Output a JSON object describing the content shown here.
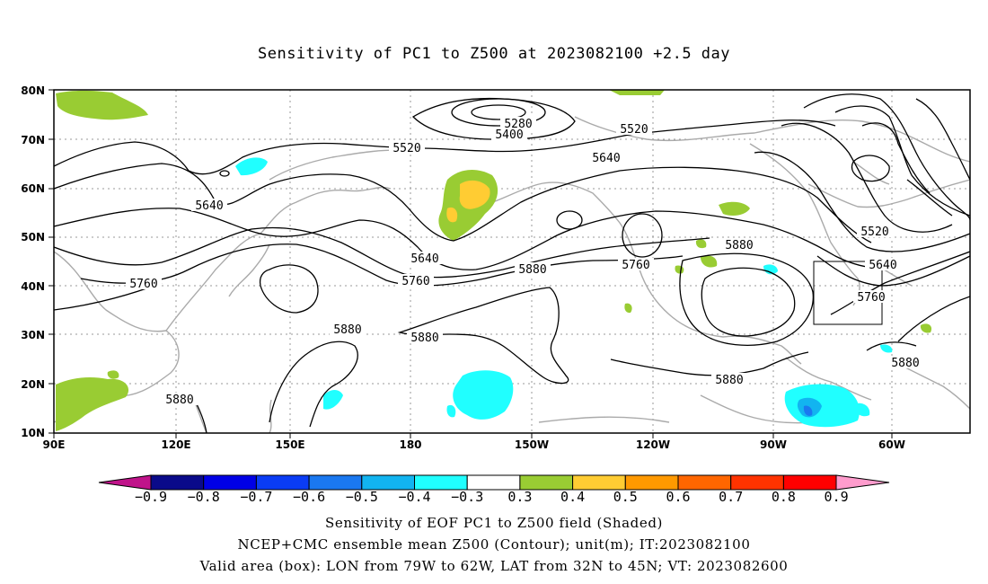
{
  "title": "Sensitivity of PC1 to Z500 at 2023082100 +2.5 day",
  "axes": {
    "lat_labels": [
      "80N",
      "70N",
      "60N",
      "50N",
      "40N",
      "30N",
      "20N",
      "10N"
    ],
    "lon_labels": [
      "90E",
      "120E",
      "150E",
      "180",
      "150W",
      "120W",
      "90W",
      "60W"
    ]
  },
  "contour_labels": {
    "c5280": "5280",
    "c5400": "5400",
    "c5520a": "5520",
    "c5520b": "5520",
    "c5520c": "5520",
    "c5640a": "5640",
    "c5640b": "5640",
    "c5640c": "5640",
    "c5640d": "5640",
    "c5760a": "5760",
    "c5760b": "5760",
    "c5760c": "5760",
    "c5760d": "5760",
    "c5880a": "5880",
    "c5880b": "5880",
    "c5880c": "5880",
    "c5880d": "5880",
    "c5880e": "5880",
    "c5880f": "5880",
    "c5880g": "5880"
  },
  "colorbar": {
    "labels": [
      "−0.9",
      "−0.8",
      "−0.7",
      "−0.6",
      "−0.5",
      "−0.4",
      "−0.3",
      "0.3",
      "0.4",
      "0.5",
      "0.6",
      "0.7",
      "0.8",
      "0.9"
    ],
    "colors": {
      "low_extend": "#c0138a",
      "bins": [
        "#0a0a8a",
        "#0000e6",
        "#0a3cf5",
        "#1a78f0",
        "#12b4f0",
        "#20ffff",
        "#ffffff",
        "#99cc33",
        "#ffcc33",
        "#ff9900",
        "#ff6600",
        "#ff3300",
        "#ff0000"
      ],
      "high_extend": "#ff9ccd"
    }
  },
  "caption": {
    "line1": "Sensitivity of EOF PC1 to Z500 field (Shaded)",
    "line2": "NCEP+CMC ensemble mean Z500 (Contour); unit(m); IT:2023082100",
    "line3": "Valid area (box): LON from 79W to 62W, LAT from 32N to 45N; VT: 2023082600"
  },
  "valid_box": {
    "lon_west": "79W",
    "lon_east": "62W",
    "lat_south": "32N",
    "lat_north": "45N"
  }
}
